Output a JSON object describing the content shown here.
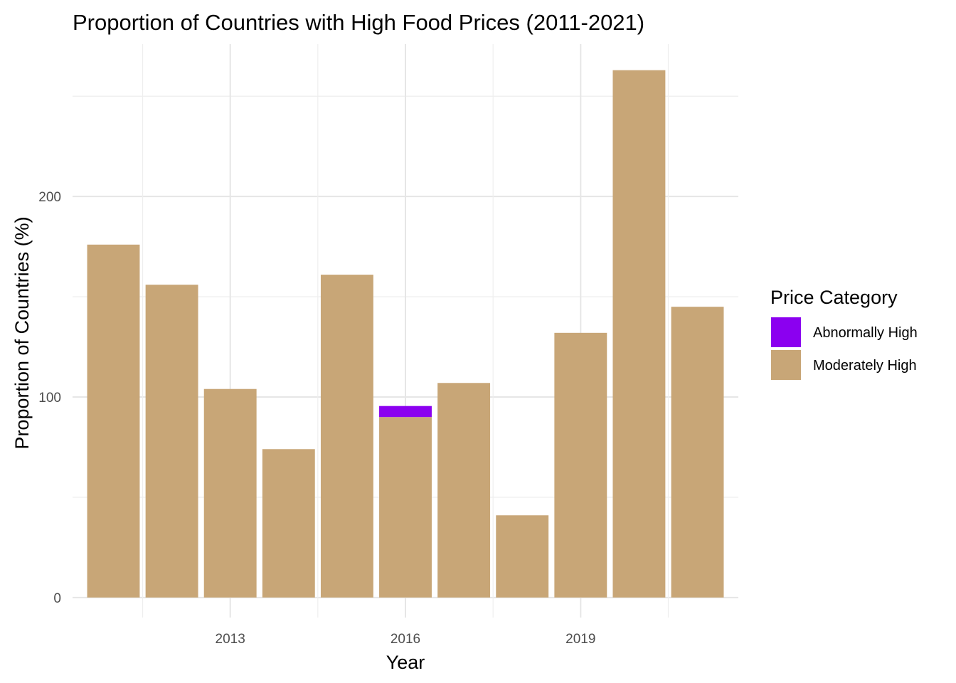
{
  "chart_data": {
    "type": "bar",
    "stacked": true,
    "title": "Proportion of Countries with High Food Prices (2011-2021)",
    "xlabel": "Year",
    "ylabel": "Proportion of Countries (%)",
    "x": [
      2011,
      2012,
      2013,
      2014,
      2015,
      2016,
      2017,
      2018,
      2019,
      2020,
      2021
    ],
    "x_ticks": [
      2013,
      2016,
      2019
    ],
    "x_tick_labels": [
      "2013",
      "2016",
      "2019"
    ],
    "y_ticks": [
      0,
      100,
      200
    ],
    "y_tick_labels": [
      "0",
      "100",
      "200"
    ],
    "xlim": [
      2010.3,
      2021.7
    ],
    "ylim": [
      -10,
      276
    ],
    "grid": true,
    "legend": {
      "title": "Price Category",
      "placement": "right"
    },
    "series": [
      {
        "name": "Moderately High",
        "color": "#C8A677",
        "values": [
          176,
          156,
          104,
          74,
          161,
          90,
          107,
          41,
          132,
          263,
          145
        ]
      },
      {
        "name": "Abnormally High",
        "color": "#8B00F0",
        "values": [
          0,
          0,
          0,
          0,
          0,
          5.5,
          0,
          0,
          0,
          0,
          0
        ]
      }
    ],
    "legend_order": [
      "Abnormally High",
      "Moderately High"
    ]
  }
}
